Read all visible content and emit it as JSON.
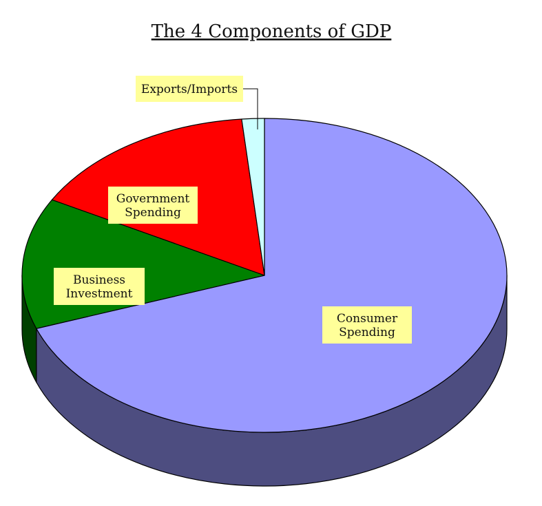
{
  "chart_data": {
    "type": "pie",
    "title": "The 4 Components of GDP",
    "categories": [
      "Consumer Spending",
      "Business Investment",
      "Government Spending",
      "Exports/Imports"
    ],
    "label_lines": [
      [
        "Consumer",
        "Spending"
      ],
      [
        "Business",
        "Investment"
      ],
      [
        "Government",
        "Spending"
      ],
      [
        "Exports/Imports"
      ]
    ],
    "values": [
      69.5,
      13.5,
      15.5,
      1.5
    ],
    "unit": "%",
    "colors": [
      "#9999ff",
      "#008000",
      "#ff0000",
      "#ccffff"
    ],
    "side_colors": [
      "#4d4d80",
      "#004000",
      "#800000",
      "#668080"
    ],
    "label_bg": "#ffff99",
    "projection": "3d-tilted",
    "legend": "none",
    "data_labels": "category names in boxes"
  }
}
